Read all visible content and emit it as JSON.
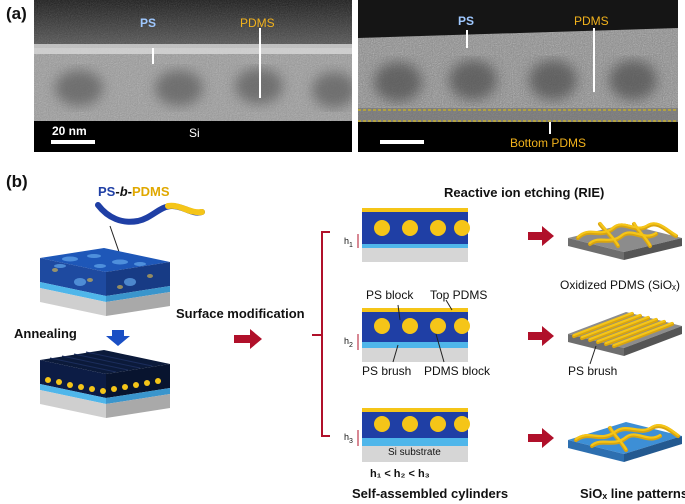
{
  "panel_a": {
    "label": "(a)",
    "left_image": {
      "ps_label": "PS",
      "pdms_label": "PDMS",
      "scale_label": "20 nm",
      "substrate_label": "Si"
    },
    "right_image": {
      "ps_label": "PS",
      "pdms_label": "PDMS",
      "bottom_label": "Bottom PDMS"
    }
  },
  "panel_b": {
    "label": "(b)",
    "copolymer": {
      "ps": "PS",
      "sep1": "-",
      "b": "b",
      "sep2": "-",
      "pdms": "PDMS"
    },
    "annealing": "Annealing",
    "surface_modification": "Surface modification",
    "rie_title": "Reactive ion etching (RIE)",
    "h1": "h",
    "h1_sub": "1",
    "h2": "h",
    "h2_sub": "2",
    "h3": "h",
    "h3_sub": "3",
    "ps_block": "PS block",
    "top_pdms": "Top PDMS",
    "ps_brush": "PS brush",
    "pdms_block": "PDMS block",
    "si_substrate": "Si substrate",
    "inequality": "h₁ < h₂ < h₃",
    "self_assembled": "Self-assembled cylinders",
    "oxidized_pdms": "Oxidized PDMS (SiOₓ)",
    "ps_brush_right": "PS brush",
    "siox_lines": "SiOₓ line patterns"
  },
  "colors": {
    "pdms_yellow": "#f5c518",
    "ps_blue": "#1f3fa5",
    "arrow_red": "#b0102a",
    "arrow_blue": "#1a4fc4",
    "label_blue": "#9fc8ff",
    "label_yellow": "#f2b21c"
  }
}
